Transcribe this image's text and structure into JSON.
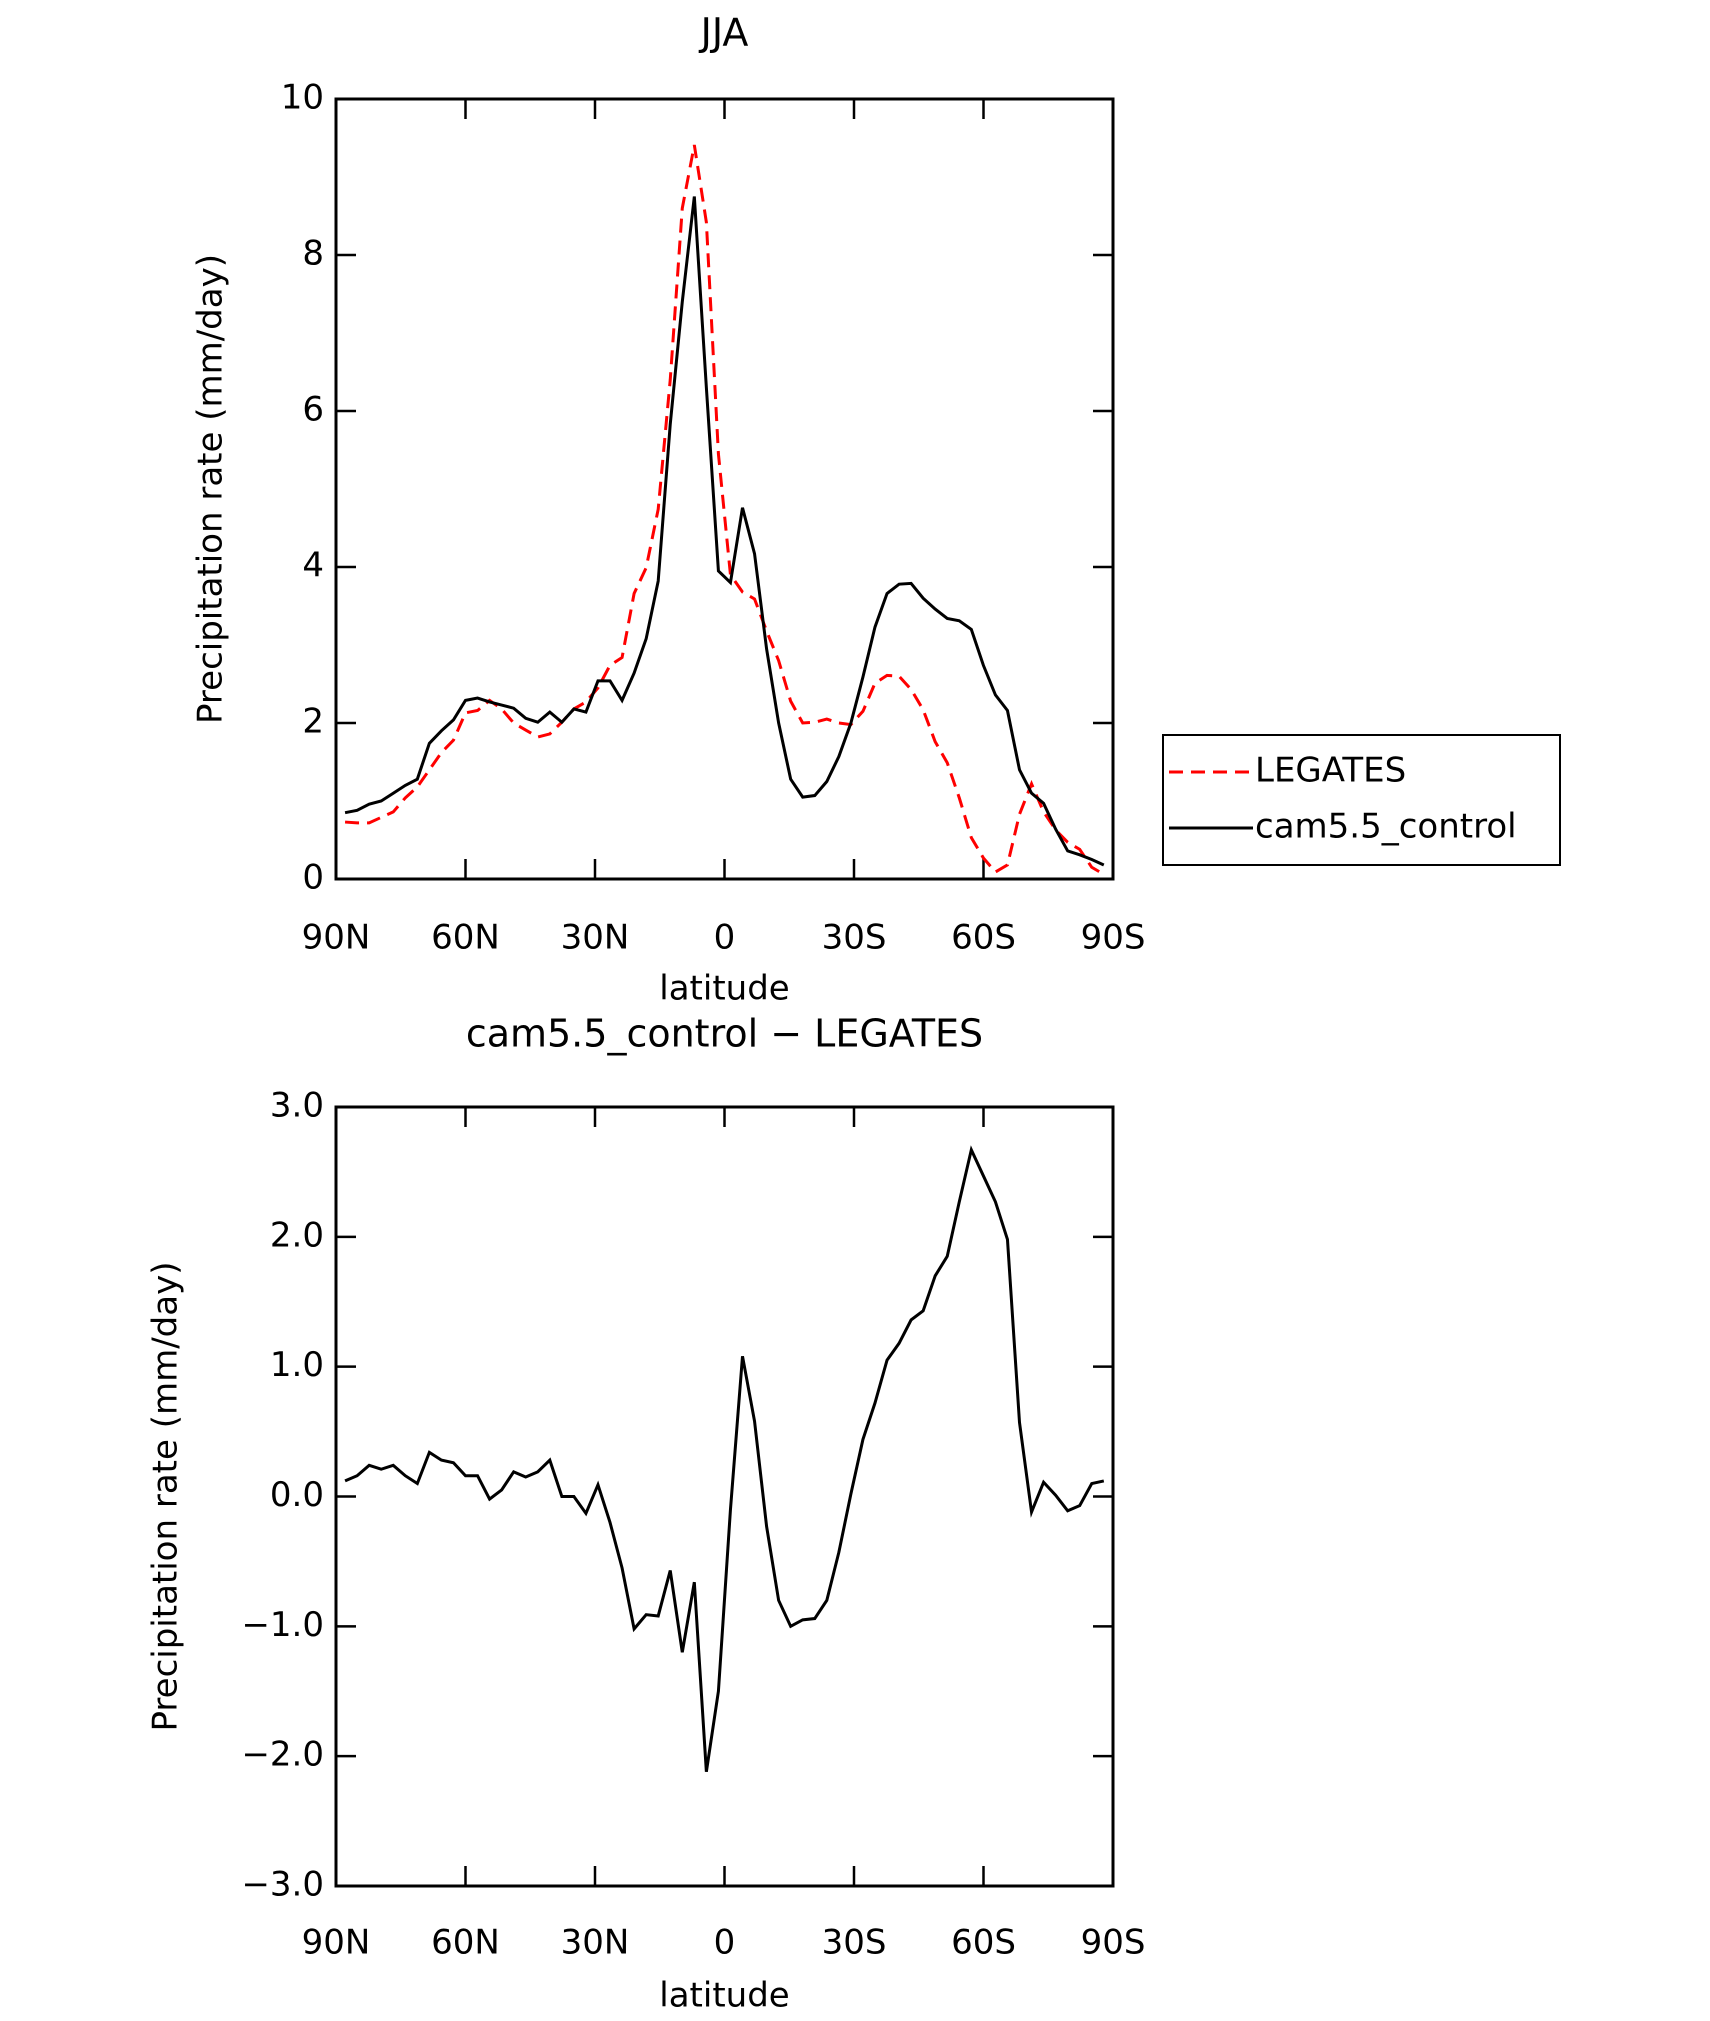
{
  "chart_data": [
    {
      "type": "line",
      "title": "JJA",
      "xlabel": "latitude",
      "ylabel": "Precipitation rate (mm/day)",
      "x": [
        87.9,
        85.11,
        82.32,
        79.53,
        76.74,
        73.95,
        71.16,
        68.37,
        65.58,
        62.79,
        60.0,
        57.21,
        54.42,
        51.63,
        48.84,
        46.05,
        43.26,
        40.47,
        37.68,
        34.89,
        32.1,
        29.31,
        26.52,
        23.73,
        20.94,
        18.15,
        15.36,
        12.57,
        9.78,
        6.99,
        4.2,
        1.41,
        -1.38,
        -4.17,
        -6.96,
        -9.75,
        -12.54,
        -15.33,
        -18.12,
        -20.91,
        -23.7,
        -26.49,
        -29.28,
        -32.07,
        -34.86,
        -37.65,
        -40.44,
        -43.23,
        -46.02,
        -48.81,
        -51.6,
        -54.39,
        -57.18,
        -59.97,
        -62.76,
        -65.55,
        -68.34,
        -71.13,
        -73.92,
        -76.71,
        -79.5,
        -82.29,
        -85.08,
        -87.87
      ],
      "series": [
        {
          "name": "LEGATES",
          "color": "#ff0000",
          "dash": true,
          "values": [
            0.73,
            0.72,
            0.72,
            0.79,
            0.86,
            1.04,
            1.18,
            1.4,
            1.62,
            1.78,
            2.13,
            2.16,
            2.29,
            2.18,
            2.0,
            1.91,
            1.82,
            1.86,
            2.01,
            2.18,
            2.27,
            2.45,
            2.74,
            2.84,
            3.66,
            3.99,
            4.74,
            6.4,
            8.6,
            9.41,
            8.42,
            5.45,
            3.9,
            3.68,
            3.59,
            3.18,
            2.8,
            2.28,
            2.0,
            2.01,
            2.05,
            2.0,
            1.98,
            2.15,
            2.51,
            2.61,
            2.6,
            2.43,
            2.17,
            1.76,
            1.49,
            1.04,
            0.53,
            0.27,
            0.09,
            0.18,
            0.83,
            1.22,
            0.86,
            0.63,
            0.47,
            0.38,
            0.15,
            0.06
          ]
        },
        {
          "name": "cam5.5_control",
          "color": "#000000",
          "dash": false,
          "values": [
            0.85,
            0.88,
            0.96,
            1.0,
            1.1,
            1.2,
            1.28,
            1.74,
            1.9,
            2.04,
            2.29,
            2.32,
            2.27,
            2.23,
            2.19,
            2.06,
            2.01,
            2.14,
            2.01,
            2.18,
            2.14,
            2.54,
            2.54,
            2.29,
            2.64,
            3.08,
            3.82,
            5.83,
            7.4,
            8.75,
            6.3,
            3.95,
            3.8,
            4.76,
            4.17,
            2.95,
            2.0,
            1.28,
            1.05,
            1.07,
            1.25,
            1.57,
            2.0,
            2.59,
            3.23,
            3.66,
            3.78,
            3.79,
            3.6,
            3.46,
            3.34,
            3.31,
            3.2,
            2.74,
            2.36,
            2.16,
            1.4,
            1.1,
            0.97,
            0.64,
            0.36,
            0.31,
            0.25,
            0.18
          ]
        }
      ],
      "xlim": [
        90,
        -90
      ],
      "xticks": [
        {
          "value": 90,
          "label": "90N"
        },
        {
          "value": 60,
          "label": "60N"
        },
        {
          "value": 30,
          "label": "30N"
        },
        0,
        {
          "value": -30,
          "label": "30S"
        },
        {
          "value": -60,
          "label": "60S"
        },
        {
          "value": -90,
          "label": "90S"
        }
      ],
      "ylim": [
        0,
        10
      ],
      "yticks": [
        0,
        2,
        4,
        6,
        8,
        10
      ],
      "legend": "outside-right"
    },
    {
      "type": "line",
      "title": "cam5.5_control − LEGATES",
      "xlabel": "latitude",
      "ylabel": "Precipitation rate (mm/day)",
      "x": [
        87.9,
        85.11,
        82.32,
        79.53,
        76.74,
        73.95,
        71.16,
        68.37,
        65.58,
        62.79,
        60.0,
        57.21,
        54.42,
        51.63,
        48.84,
        46.05,
        43.26,
        40.47,
        37.68,
        34.89,
        32.1,
        29.31,
        26.52,
        23.73,
        20.94,
        18.15,
        15.36,
        12.57,
        9.78,
        6.99,
        4.2,
        1.41,
        -1.38,
        -4.17,
        -6.96,
        -9.75,
        -12.54,
        -15.33,
        -18.12,
        -20.91,
        -23.7,
        -26.49,
        -29.28,
        -32.07,
        -34.86,
        -37.65,
        -40.44,
        -43.23,
        -46.02,
        -48.81,
        -51.6,
        -54.39,
        -57.18,
        -59.97,
        -62.76,
        -65.55,
        -68.34,
        -71.13,
        -73.92,
        -76.71,
        -79.5,
        -82.29,
        -85.08,
        -87.87
      ],
      "series": [
        {
          "color": "#000000",
          "dash": false,
          "values": [
            0.12,
            0.16,
            0.24,
            0.21,
            0.24,
            0.16,
            0.1,
            0.34,
            0.28,
            0.26,
            0.16,
            0.16,
            -0.02,
            0.05,
            0.19,
            0.15,
            0.19,
            0.28,
            0.0,
            0.0,
            -0.13,
            0.09,
            -0.2,
            -0.55,
            -1.02,
            -0.91,
            -0.92,
            -0.57,
            -1.2,
            -0.66,
            -2.12,
            -1.5,
            -0.1,
            1.08,
            0.58,
            -0.23,
            -0.8,
            -1.0,
            -0.95,
            -0.94,
            -0.8,
            -0.43,
            0.02,
            0.44,
            0.72,
            1.05,
            1.18,
            1.36,
            1.43,
            1.7,
            1.85,
            2.27,
            2.67,
            2.47,
            2.27,
            1.98,
            0.57,
            -0.12,
            0.11,
            0.01,
            -0.11,
            -0.07,
            0.1,
            0.12
          ]
        }
      ],
      "xlim": [
        90,
        -90
      ],
      "xticks": [
        {
          "value": 90,
          "label": "90N"
        },
        {
          "value": 60,
          "label": "60N"
        },
        {
          "value": 30,
          "label": "30N"
        },
        0,
        {
          "value": -30,
          "label": "30S"
        },
        {
          "value": -60,
          "label": "60S"
        },
        {
          "value": -90,
          "label": "90S"
        }
      ],
      "ylim": [
        -3,
        3
      ],
      "yticks": [
        {
          "value": -3,
          "label": "−3.0"
        },
        {
          "value": -2,
          "label": "−2.0"
        },
        {
          "value": -1,
          "label": "−1.0"
        },
        {
          "value": 0,
          "label": "0.0"
        },
        {
          "value": 1,
          "label": "1.0"
        },
        {
          "value": 2,
          "label": "2.0"
        },
        {
          "value": 3,
          "label": "3.0"
        }
      ]
    }
  ]
}
